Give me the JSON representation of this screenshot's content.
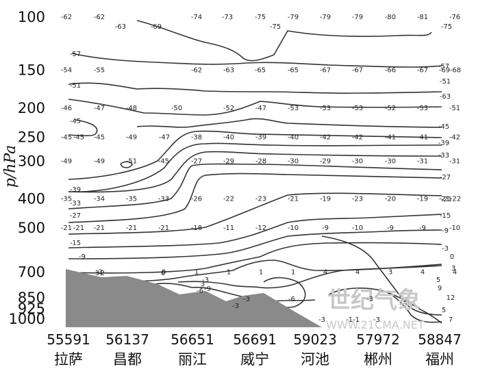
{
  "chart_data": {
    "type": "contour",
    "ylabel": "p/hPa",
    "y_axis": {
      "scale": "log-pressure",
      "direction": "reversed",
      "ticks": [
        100,
        150,
        200,
        250,
        300,
        400,
        500,
        700,
        850,
        925,
        1000
      ]
    },
    "stations": [
      {
        "code": "55591",
        "name": "拉萨"
      },
      {
        "code": "56137",
        "name": "昌都"
      },
      {
        "code": "56651",
        "name": "丽江"
      },
      {
        "code": "56691",
        "name": "威宁"
      },
      {
        "code": "59023",
        "name": "河池"
      },
      {
        "code": "57972",
        "name": "郴州"
      },
      {
        "code": "58847",
        "name": "福州"
      }
    ],
    "grid": false,
    "terrain_fill": "#8a8a8a",
    "value_labels": [
      {
        "row": 100,
        "values": [
          "-62",
          "-62",
          "-74",
          "-73",
          "-75",
          "-79",
          "-79",
          "-79",
          "-80",
          "-81",
          "-76"
        ]
      },
      {
        "row": 150,
        "values": [
          "-54",
          "-55",
          "-62",
          "-63",
          "-65",
          "-65",
          "-67",
          "-67",
          "-66",
          "-67",
          "-69",
          "-68"
        ]
      },
      {
        "row": 200,
        "values": [
          "-46",
          "-47",
          "-48",
          "-50",
          "-52",
          "-47",
          "-53",
          "-53",
          "-53",
          "-52",
          "-53",
          "-51"
        ]
      },
      {
        "row": 250,
        "values": [
          "-45",
          "-45",
          "-45",
          "-49",
          "-47",
          "-38",
          "-40",
          "-39",
          "-40",
          "-42",
          "-42",
          "-41",
          "-41",
          "-42"
        ]
      },
      {
        "row": 300,
        "values": [
          "-49",
          "-49",
          "-51",
          "-45",
          "-27",
          "-29",
          "-28",
          "-30",
          "-29",
          "-30",
          "-30",
          "-31",
          "-31"
        ]
      },
      {
        "row": 400,
        "values": [
          "-35",
          "-34",
          "-35",
          "-33",
          "-26",
          "-22",
          "-23",
          "-21",
          "-19",
          "-23",
          "-20",
          "-19",
          "-21",
          "-22"
        ]
      },
      {
        "row": 500,
        "values": [
          "-21",
          "-21",
          "-21",
          "-21",
          "-21",
          "-18",
          "-11",
          "-12",
          "-10",
          "-9",
          "-10",
          "-9",
          "-9",
          "-10"
        ]
      },
      {
        "row": 700,
        "values": [
          "-3",
          "0",
          "1",
          "1",
          "1",
          "1",
          "4",
          "4",
          "3",
          "4",
          "4"
        ]
      }
    ],
    "isoline_labels": [
      "-63",
      "-69",
      "-75",
      "-75",
      "-57",
      "-51",
      "-45",
      "-39",
      "-33",
      "-27",
      "-15",
      "-9",
      "-3",
      "0",
      "3",
      "-3",
      "-6",
      "-3",
      "-9",
      "-6",
      "-3",
      "-1",
      "-3",
      "-2",
      "5",
      "9",
      "12",
      "5",
      "7",
      "-3",
      "-1",
      "-3",
      "-51",
      "-57",
      "-63",
      "-45",
      "-39",
      "-33",
      "-27",
      "-21",
      "-15",
      "-9",
      "-3",
      "0",
      "3"
    ]
  },
  "watermark": {
    "line1": "世纪气象",
    "line2": "WWW.21CMA.NET"
  }
}
